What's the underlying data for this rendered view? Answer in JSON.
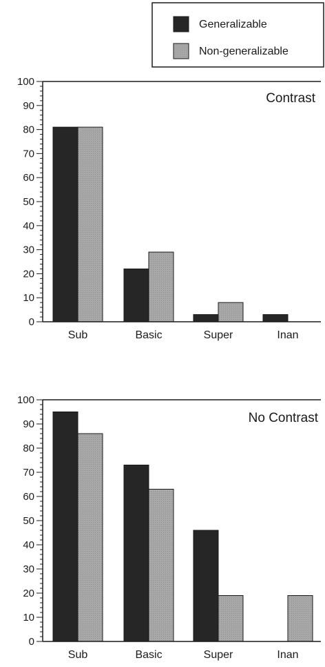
{
  "legend": {
    "items": [
      {
        "label": "Generalizable",
        "color": "#262626"
      },
      {
        "label": "Non-generalizable",
        "color": "#a8a8a8"
      }
    ]
  },
  "chart_data": [
    {
      "type": "bar",
      "title": "Contrast",
      "categories": [
        "Sub",
        "Basic",
        "Super",
        "Inan"
      ],
      "series": [
        {
          "name": "Generalizable",
          "values": [
            81,
            22,
            3,
            3
          ]
        },
        {
          "name": "Non-generalizable",
          "values": [
            81,
            29,
            8,
            0
          ]
        }
      ],
      "ylim": [
        0,
        100
      ],
      "yticks": [
        "0",
        "10",
        "20",
        "30",
        "40",
        "50",
        "60",
        "70",
        "80",
        "90",
        "100"
      ],
      "xlabel": "",
      "ylabel": ""
    },
    {
      "type": "bar",
      "title": "No Contrast",
      "categories": [
        "Sub",
        "Basic",
        "Super",
        "Inan"
      ],
      "series": [
        {
          "name": "Generalizable",
          "values": [
            95,
            73,
            46,
            0
          ]
        },
        {
          "name": "Non-generalizable",
          "values": [
            86,
            63,
            19,
            19
          ]
        }
      ],
      "ylim": [
        0,
        100
      ],
      "yticks": [
        "0",
        "10",
        "20",
        "30",
        "40",
        "50",
        "60",
        "70",
        "80",
        "90",
        "100"
      ],
      "xlabel": "",
      "ylabel": ""
    }
  ]
}
